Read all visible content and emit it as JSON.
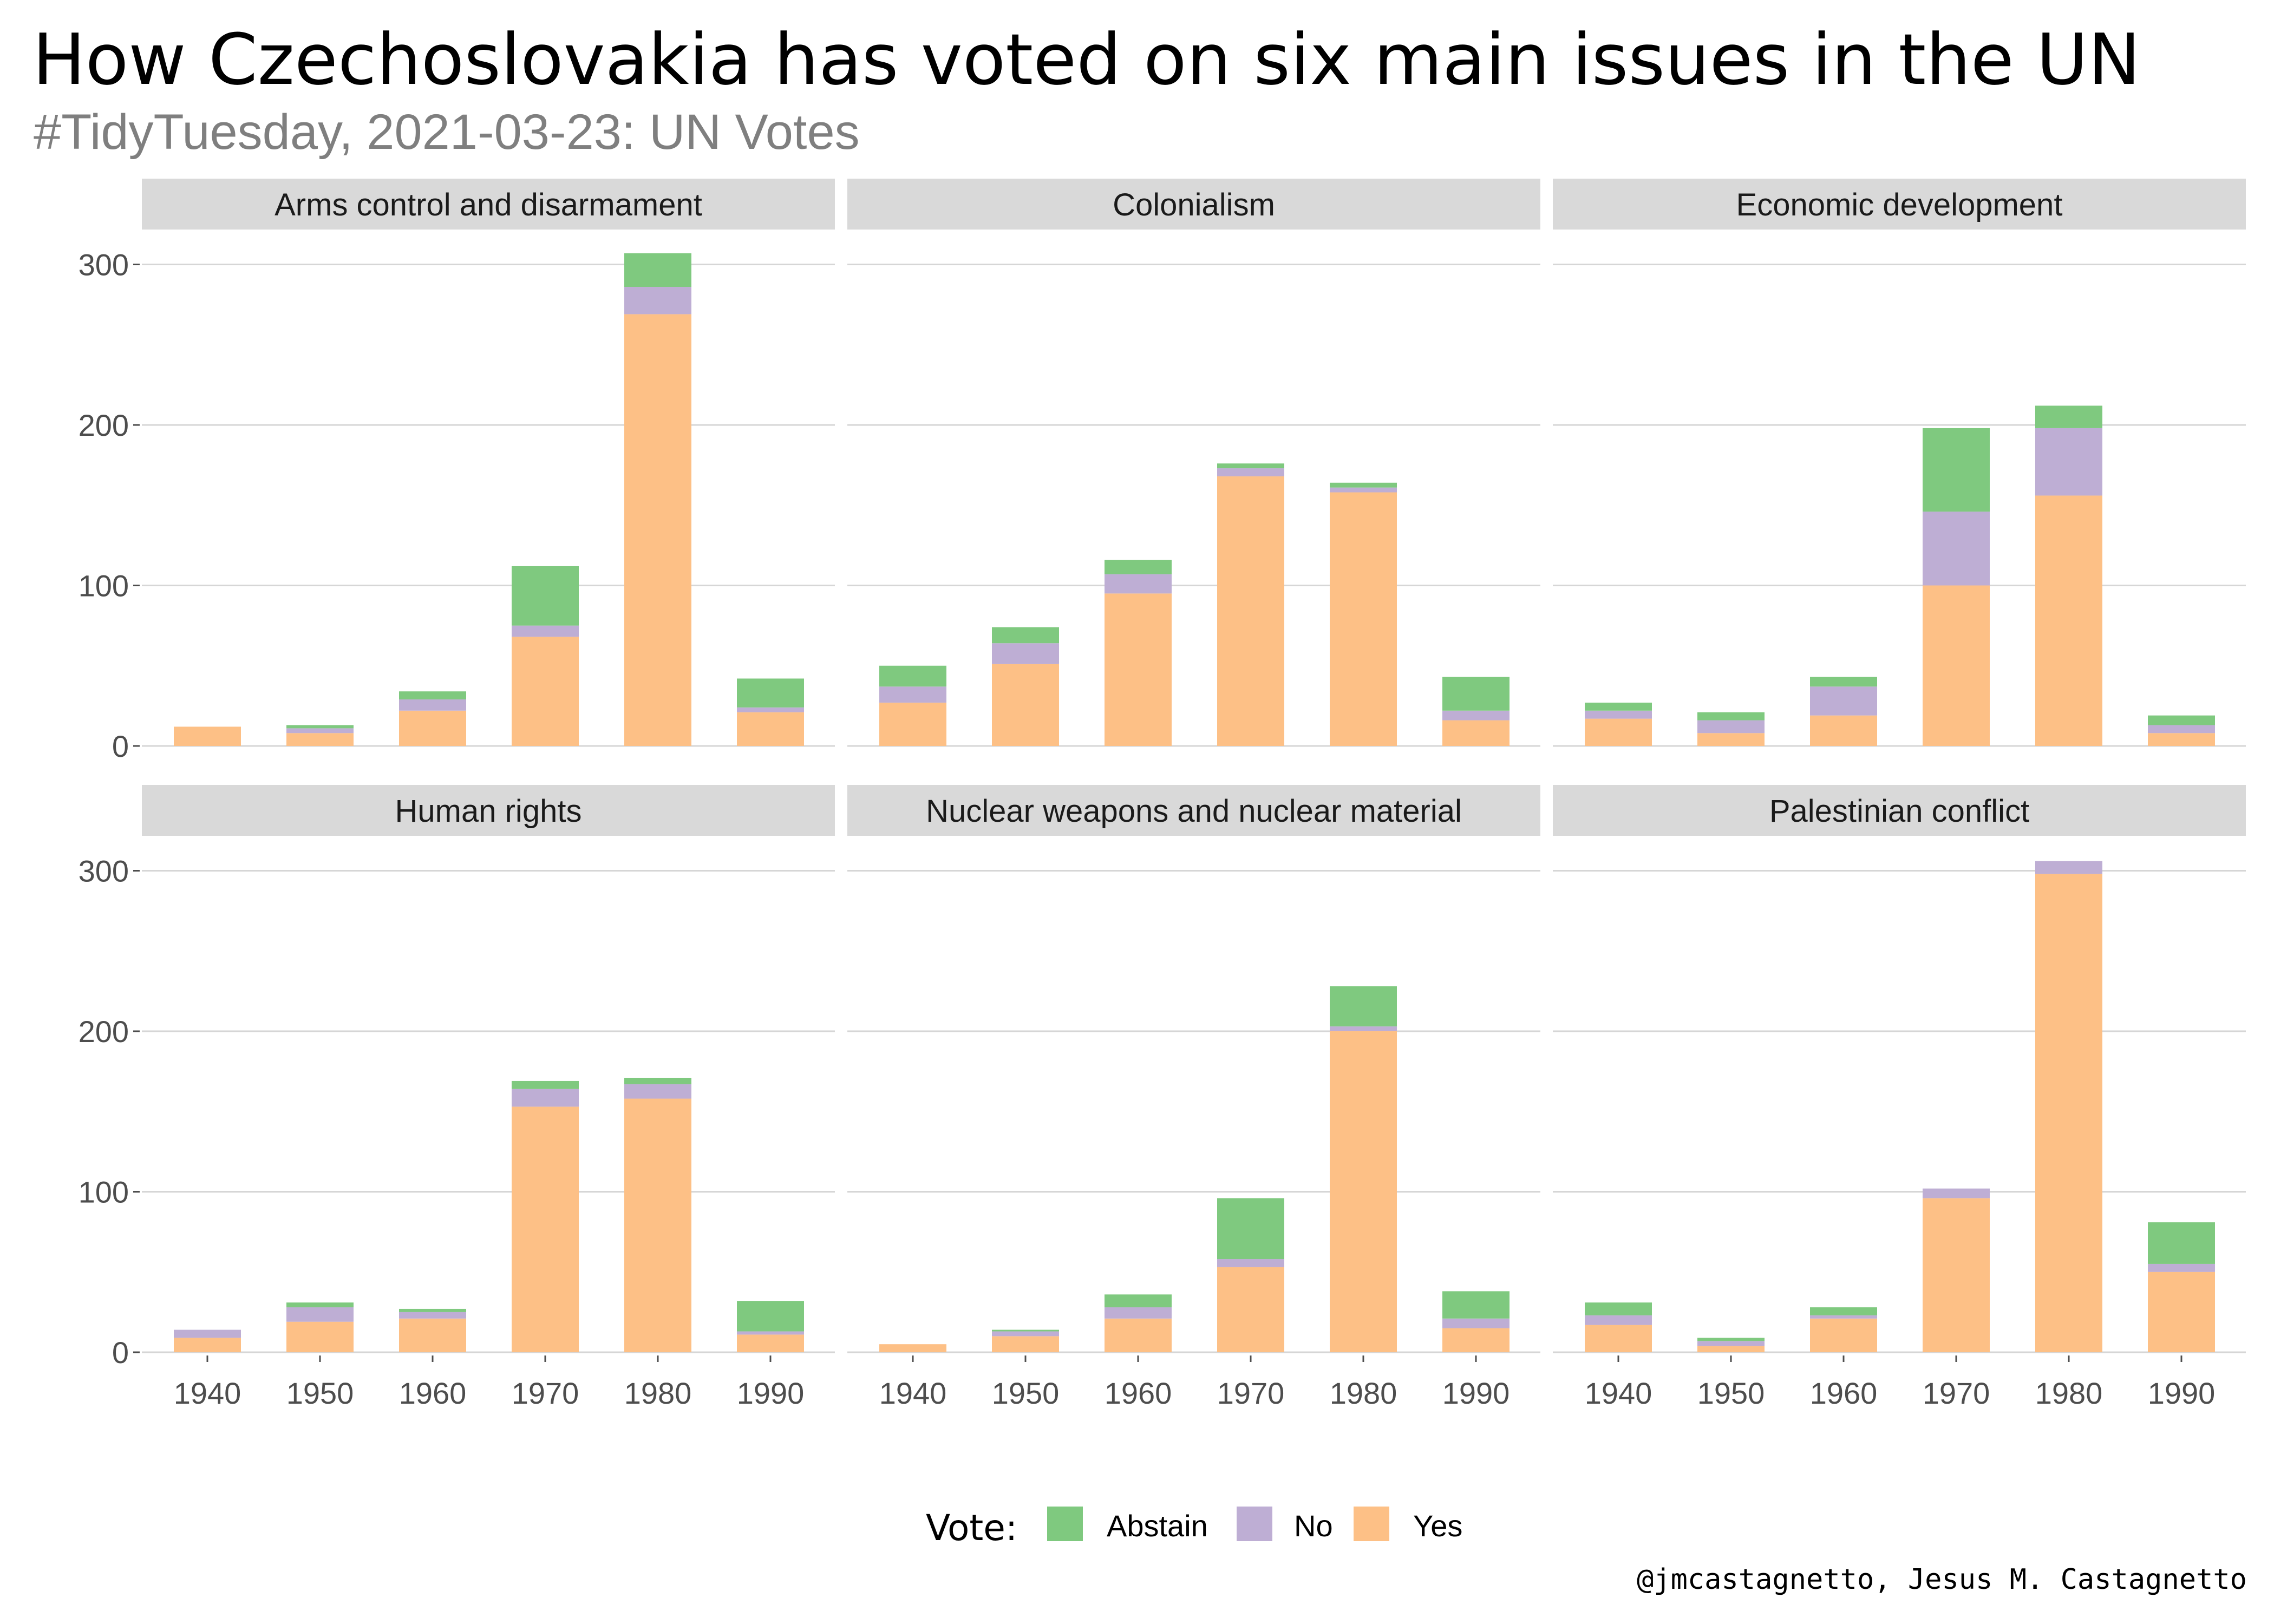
{
  "title": "How Czechoslovakia has voted on six main issues in the UN",
  "subtitle": "#TidyTuesday, 2021-03-23: UN Votes",
  "caption": "@jmcastagnetto, Jesus M. Castagnetto",
  "legend": {
    "title": "Vote:",
    "items": [
      {
        "label": "Abstain",
        "color": "#7fc97f"
      },
      {
        "label": "No",
        "color": "#beaed4"
      },
      {
        "label": "Yes",
        "color": "#fdc086"
      }
    ]
  },
  "chart_data": {
    "type": "bar",
    "stacked": true,
    "categories": [
      "1940",
      "1950",
      "1960",
      "1970",
      "1980",
      "1990"
    ],
    "ylim": [
      0,
      320
    ],
    "yticks": [
      0,
      100,
      200,
      300
    ],
    "grid": true,
    "legend_position": "bottom",
    "series_order": [
      "Yes",
      "No",
      "Abstain"
    ],
    "colors": {
      "Yes": "#fdc086",
      "No": "#beaed4",
      "Abstain": "#7fc97f"
    },
    "panels": [
      {
        "title": "Arms control and disarmament",
        "Yes": [
          12,
          8,
          22,
          68,
          269,
          21
        ],
        "No": [
          0,
          3,
          7,
          7,
          17,
          3
        ],
        "Abstain": [
          0,
          2,
          5,
          37,
          21,
          18
        ]
      },
      {
        "title": "Colonialism",
        "Yes": [
          27,
          51,
          95,
          168,
          158,
          16
        ],
        "No": [
          10,
          13,
          12,
          5,
          3,
          6
        ],
        "Abstain": [
          13,
          10,
          9,
          3,
          3,
          21
        ]
      },
      {
        "title": "Economic development",
        "Yes": [
          17,
          8,
          19,
          100,
          156,
          8
        ],
        "No": [
          5,
          8,
          18,
          46,
          42,
          5
        ],
        "Abstain": [
          5,
          5,
          6,
          52,
          14,
          6
        ]
      },
      {
        "title": "Human rights",
        "Yes": [
          9,
          19,
          21,
          153,
          158,
          11
        ],
        "No": [
          5,
          9,
          4,
          11,
          9,
          2
        ],
        "Abstain": [
          0,
          3,
          2,
          5,
          4,
          19
        ]
      },
      {
        "title": "Nuclear weapons and nuclear material",
        "Yes": [
          5,
          10,
          21,
          53,
          200,
          15
        ],
        "No": [
          0,
          3,
          7,
          5,
          3,
          6
        ],
        "Abstain": [
          0,
          1,
          8,
          38,
          25,
          17
        ]
      },
      {
        "title": "Palestinian conflict",
        "Yes": [
          17,
          4,
          21,
          96,
          298,
          50
        ],
        "No": [
          6,
          3,
          2,
          6,
          8,
          5
        ],
        "Abstain": [
          8,
          2,
          5,
          0,
          0,
          26
        ]
      }
    ]
  }
}
